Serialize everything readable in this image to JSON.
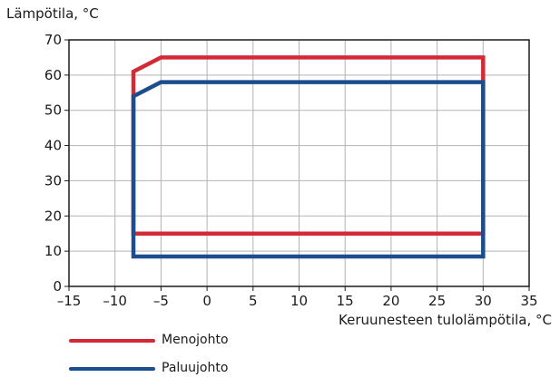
{
  "chart_data": {
    "type": "line",
    "ylabel": "Lämpötila, °C",
    "xlabel": "Keruunesteen tulolämpötila, °C",
    "xlim": [
      -15,
      35
    ],
    "ylim": [
      0,
      70
    ],
    "xticks": [
      -15,
      -10,
      -5,
      0,
      5,
      10,
      15,
      20,
      25,
      30,
      35
    ],
    "xtick_labels": [
      "–15",
      "–10",
      "–5",
      "0",
      "5",
      "10",
      "15",
      "20",
      "25",
      "30",
      "35"
    ],
    "yticks": [
      0,
      10,
      20,
      30,
      40,
      50,
      60,
      70
    ],
    "ytick_labels": [
      "0",
      "10",
      "20",
      "30",
      "40",
      "50",
      "60",
      "70"
    ],
    "grid": true,
    "legend_position": "bottom-left",
    "series": [
      {
        "name": "Menojohto",
        "color": "#d42a35",
        "x": [
          -8,
          -8,
          -5,
          30,
          30,
          -8
        ],
        "y": [
          15,
          61,
          65,
          65,
          15,
          15
        ]
      },
      {
        "name": "Paluujohto",
        "color": "#1c4e8e",
        "x": [
          -8,
          -8,
          -5,
          30,
          30,
          -8
        ],
        "y": [
          8.5,
          54,
          58,
          58,
          8.5,
          8.5
        ]
      }
    ]
  }
}
